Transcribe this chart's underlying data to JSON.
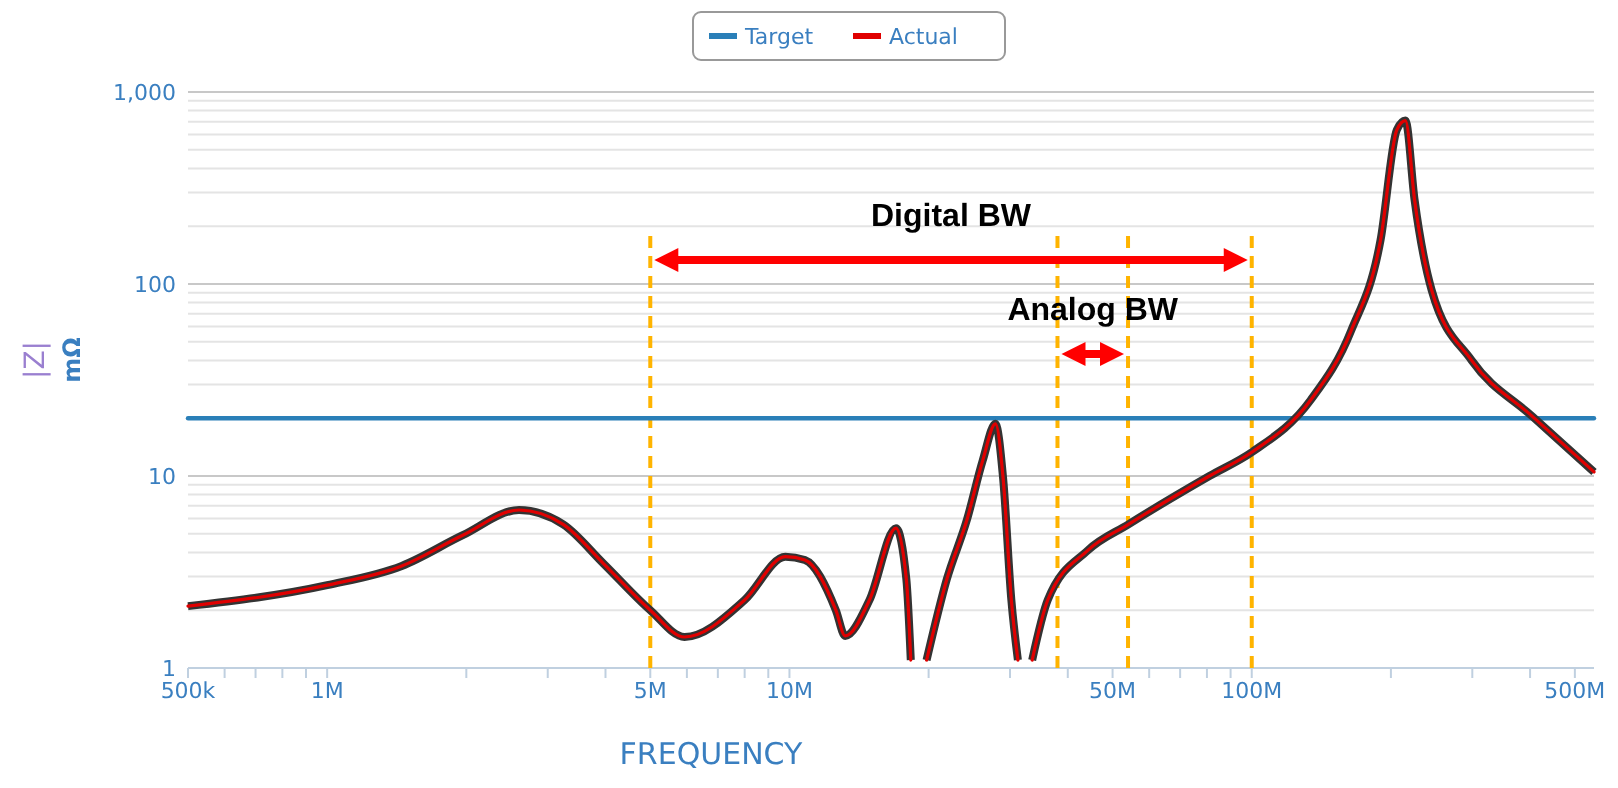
{
  "chart_data": {
    "type": "line",
    "xlabel": "FREQUENCY",
    "ylabel": "|Z|\nmΩ",
    "log": "xy",
    "grid": "y",
    "legend": "top",
    "marker": "none",
    "line_style": "solid",
    "xlim": [
      500000,
      550000000
    ],
    "ylim": [
      1,
      1000
    ],
    "xticks": [
      {
        "value": 500000,
        "label": "500k"
      },
      {
        "value": 600000,
        "label": null
      },
      {
        "value": 700000,
        "label": null
      },
      {
        "value": 800000,
        "label": null
      },
      {
        "value": 900000,
        "label": null
      },
      {
        "value": 1000000,
        "label": "1M"
      },
      {
        "value": 2000000,
        "label": null
      },
      {
        "value": 3000000,
        "label": null
      },
      {
        "value": 4000000,
        "label": null
      },
      {
        "value": 5000000,
        "label": "5M"
      },
      {
        "value": 6000000,
        "label": null
      },
      {
        "value": 7000000,
        "label": null
      },
      {
        "value": 8000000,
        "label": null
      },
      {
        "value": 9000000,
        "label": null
      },
      {
        "value": 10000000,
        "label": "10M"
      },
      {
        "value": 20000000,
        "label": null
      },
      {
        "value": 30000000,
        "label": null
      },
      {
        "value": 40000000,
        "label": null
      },
      {
        "value": 50000000,
        "label": "50M"
      },
      {
        "value": 60000000,
        "label": null
      },
      {
        "value": 70000000,
        "label": null
      },
      {
        "value": 80000000,
        "label": null
      },
      {
        "value": 90000000,
        "label": null
      },
      {
        "value": 100000000,
        "label": "100M"
      },
      {
        "value": 200000000,
        "label": null
      },
      {
        "value": 300000000,
        "label": null
      },
      {
        "value": 400000000,
        "label": null
      },
      {
        "value": 500000000,
        "label": "500M"
      }
    ],
    "yticks": [
      1,
      {
        "value": 2,
        "label": null
      },
      {
        "value": 3,
        "label": null
      },
      {
        "value": 4,
        "label": null
      },
      {
        "value": 5,
        "label": null
      },
      {
        "value": 6,
        "label": null
      },
      {
        "value": 7,
        "label": null
      },
      {
        "value": 8,
        "label": null
      },
      {
        "value": 9,
        "label": null
      },
      10,
      {
        "value": 20,
        "label": null
      },
      {
        "value": 30,
        "label": null
      },
      {
        "value": 40,
        "label": null
      },
      {
        "value": 50,
        "label": null
      },
      {
        "value": 60,
        "label": null
      },
      {
        "value": 70,
        "label": null
      },
      {
        "value": 80,
        "label": null
      },
      {
        "value": 90,
        "label": null
      },
      100,
      {
        "value": 200,
        "label": null
      },
      {
        "value": 300,
        "label": null
      },
      {
        "value": 400,
        "label": null
      },
      {
        "value": 500,
        "label": null
      },
      {
        "value": 600,
        "label": null
      },
      {
        "value": 700,
        "label": null
      },
      {
        "value": 800,
        "label": null
      },
      {
        "value": 900,
        "label": null
      },
      {
        "value": 1000,
        "label": "1,000"
      }
    ],
    "series": [
      {
        "name": "Target",
        "color": "#2a7fb8",
        "x": [
          500000,
          550000000
        ],
        "values": [
          20,
          20
        ]
      },
      {
        "name": "Actual",
        "color": "#e00000",
        "x": [
          500000,
          1000000,
          1450000,
          1960000,
          2600000,
          3240000,
          3960000,
          5000000,
          5930000,
          8000000,
          9800000,
          10800000,
          12600000,
          13200000,
          14900000,
          17000000,
          17900000,
          18300000,
          18800000,
          19300000,
          19800000,
          21900000,
          24200000,
          26200000,
          27900000,
          29000000,
          30200000,
          31200000,
          32300000,
          33500000,
          36200000,
          44200000,
          54100000,
          81000000,
          100000000,
          134000000,
          164000000,
          190000000,
          206000000,
          215000000,
          225000000,
          245000000,
          299000000,
          404000000,
          550000000
        ],
        "values": [
          2.1,
          2.7,
          3.4,
          4.9,
          6.65,
          5.6,
          3.5,
          2.0,
          1.45,
          2.26,
          3.8,
          3.65,
          2.0,
          1.47,
          2.26,
          5.35,
          2.9,
          1.1,
          null,
          null,
          1.1,
          2.9,
          5.9,
          12.1,
          18.7,
          9.6,
          2.26,
          1.1,
          null,
          1.1,
          2.26,
          4.1,
          5.6,
          10,
          13.3,
          24.8,
          57,
          170,
          635,
          710,
          275,
          93,
          40,
          20.5,
          10.5
        ]
      }
    ],
    "ref_lines": [
      {
        "axis": "x",
        "value": 5000000,
        "color": "#ffb400",
        "line_style": "dashed"
      },
      {
        "axis": "x",
        "value": 38000000,
        "color": "#ffb400",
        "line_style": "dashed"
      },
      {
        "axis": "x",
        "value": 54000000,
        "color": "#ffb400",
        "line_style": "dashed"
      },
      {
        "axis": "x",
        "value": 100000000,
        "color": "#ffb400",
        "line_style": "dashed"
      }
    ],
    "annotations": [
      "Digital BW",
      "Analog BW"
    ]
  }
}
